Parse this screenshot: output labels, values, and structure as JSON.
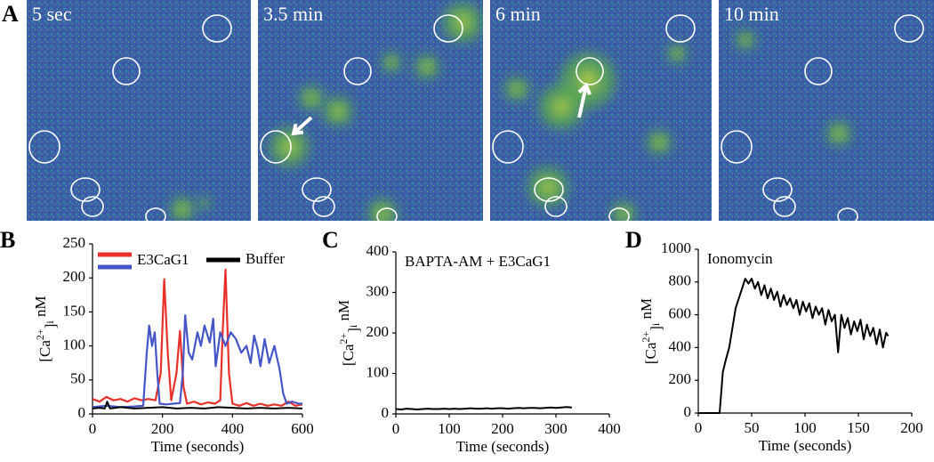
{
  "image_panel": {
    "panel": "A",
    "frames": [
      "5 sec",
      "3.5 min",
      "6 min",
      "10 min"
    ]
  },
  "chart_data": [
    {
      "type": "line",
      "panel": "B",
      "x_label": "Time (seconds)",
      "y_label": [
        "[Ca",
        "2+",
        "]",
        "i",
        " nM"
      ],
      "xlim": [
        0,
        600
      ],
      "xticks": [
        0,
        200,
        400,
        600
      ],
      "ylim": [
        0,
        250
      ],
      "yticks": [
        0,
        50,
        100,
        150,
        200,
        250
      ],
      "legend": true,
      "series": [
        {
          "name": "E3CaG1",
          "color": "#e8302a",
          "x": [
            0,
            20,
            40,
            60,
            80,
            100,
            120,
            140,
            160,
            180,
            195,
            205,
            215,
            225,
            240,
            250,
            260,
            270,
            290,
            310,
            330,
            350,
            365,
            372,
            380,
            390,
            400,
            420,
            440,
            460,
            480,
            500,
            520,
            540,
            560,
            580,
            600
          ],
          "values": [
            22,
            18,
            25,
            20,
            22,
            18,
            23,
            20,
            22,
            20,
            60,
            198,
            90,
            20,
            60,
            122,
            40,
            15,
            18,
            14,
            17,
            15,
            20,
            120,
            212,
            60,
            15,
            12,
            16,
            12,
            15,
            12,
            14,
            12,
            18,
            12,
            14
          ]
        },
        {
          "color": "#4455c8",
          "x": [
            0,
            40,
            80,
            120,
            145,
            155,
            162,
            170,
            178,
            185,
            192,
            210,
            230,
            250,
            258,
            265,
            275,
            285,
            300,
            310,
            320,
            335,
            345,
            352,
            365,
            380,
            395,
            410,
            425,
            440,
            452,
            462,
            472,
            480,
            492,
            505,
            520,
            535,
            545,
            555,
            570,
            590,
            600
          ],
          "values": [
            10,
            12,
            10,
            11,
            12,
            90,
            130,
            100,
            120,
            60,
            15,
            14,
            15,
            16,
            60,
            145,
            90,
            80,
            120,
            100,
            130,
            105,
            140,
            70,
            120,
            100,
            120,
            110,
            90,
            100,
            75,
            115,
            95,
            70,
            110,
            75,
            100,
            65,
            30,
            15,
            18,
            15,
            15
          ]
        },
        {
          "name": "Buffer",
          "color": "#000000",
          "x": [
            0,
            20,
            35,
            42,
            50,
            80,
            120,
            160,
            200,
            240,
            280,
            320,
            360,
            400,
            440,
            480,
            520,
            560,
            600
          ],
          "values": [
            8,
            9,
            8,
            18,
            8,
            10,
            8,
            9,
            10,
            8,
            9,
            8,
            10,
            9,
            8,
            9,
            8,
            9,
            8
          ]
        }
      ]
    },
    {
      "type": "line",
      "panel": "C",
      "annotation": "BAPTA-AM + E3CaG1",
      "x_label": "Time (seconds)",
      "y_label": [
        "[Ca",
        "2+",
        "]",
        "i",
        " nM"
      ],
      "xlim": [
        0,
        400
      ],
      "xticks": [
        0,
        100,
        200,
        300,
        400
      ],
      "ylim": [
        0,
        400
      ],
      "yticks": [
        0,
        100,
        200,
        300,
        400
      ],
      "series": [
        {
          "color": "#000000",
          "x": [
            0,
            10,
            20,
            30,
            40,
            50,
            60,
            70,
            80,
            90,
            100,
            110,
            120,
            130,
            140,
            150,
            160,
            170,
            180,
            190,
            200,
            210,
            220,
            230,
            240,
            250,
            260,
            270,
            280,
            290,
            300,
            310,
            320,
            330
          ],
          "values": [
            12,
            11,
            13,
            12,
            11,
            12,
            13,
            12,
            12,
            13,
            12,
            13,
            12,
            13,
            14,
            13,
            13,
            14,
            13,
            14,
            14,
            13,
            14,
            15,
            14,
            15,
            15,
            14,
            15,
            16,
            15,
            16,
            17,
            16
          ]
        }
      ]
    },
    {
      "type": "line",
      "panel": "D",
      "annotation": "Ionomycin",
      "x_label": "Time (seconds)",
      "y_label": [
        "[Ca",
        "2+",
        "]",
        "i",
        " nM"
      ],
      "xlim": [
        0,
        200
      ],
      "xticks": [
        0,
        50,
        100,
        150,
        200
      ],
      "ylim": [
        0,
        1000
      ],
      "yticks": [
        0,
        200,
        400,
        600,
        800,
        1000
      ],
      "series": [
        {
          "color": "#000000",
          "x": [
            0,
            20,
            23,
            26,
            29,
            32,
            35,
            38,
            41,
            44,
            47,
            50,
            53,
            56,
            59,
            62,
            65,
            68,
            71,
            74,
            77,
            80,
            83,
            86,
            89,
            92,
            95,
            98,
            101,
            104,
            107,
            110,
            113,
            116,
            119,
            122,
            125,
            128,
            131,
            134,
            137,
            140,
            143,
            146,
            149,
            152,
            155,
            158,
            161,
            164,
            167,
            170,
            173,
            176,
            178
          ],
          "values": [
            0,
            0,
            250,
            330,
            400,
            520,
            640,
            700,
            760,
            820,
            790,
            820,
            760,
            800,
            720,
            780,
            700,
            760,
            690,
            740,
            650,
            720,
            660,
            700,
            640,
            690,
            600,
            680,
            620,
            670,
            580,
            650,
            600,
            640,
            540,
            630,
            560,
            600,
            370,
            600,
            520,
            580,
            480,
            560,
            500,
            570,
            450,
            540,
            470,
            520,
            420,
            510,
            400,
            490,
            470
          ]
        }
      ]
    }
  ]
}
